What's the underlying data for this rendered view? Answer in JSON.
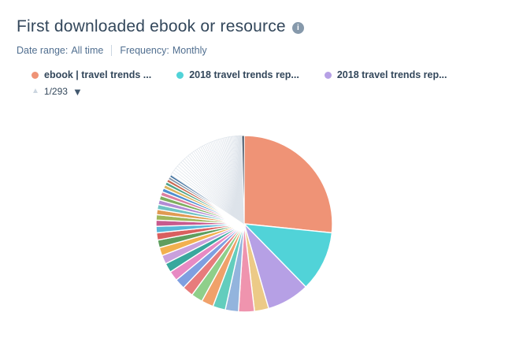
{
  "header": {
    "title": "First downloaded ebook or resource",
    "info_icon_glyph": "i"
  },
  "filters": {
    "date_range_label": "Date range:",
    "date_range_value": "All time",
    "frequency_label": "Frequency:",
    "frequency_value": "Monthly"
  },
  "legend": {
    "items": [
      {
        "label": "ebook | travel trends ...",
        "color": "#ef9376"
      },
      {
        "label": "2018 travel trends rep...",
        "color": "#51d3d8"
      },
      {
        "label": "2018 travel trends rep...",
        "color": "#b6a0e5"
      }
    ],
    "pagination": {
      "current_page": "1/293",
      "up_icon": "▲",
      "down_icon": "▼"
    }
  },
  "chart_data": {
    "type": "pie",
    "title": "First downloaded ebook or resource",
    "legend_position": "top",
    "units": "percent (estimated from slice angles)",
    "slices": [
      {
        "label": "ebook | travel trends ...",
        "value": 26.5,
        "color": "#ef9376"
      },
      {
        "label": "2018 travel trends rep...",
        "value": 11.0,
        "color": "#51d3d8"
      },
      {
        "label": "2018 travel trends rep...",
        "value": 7.8,
        "color": "#b6a0e5"
      },
      {
        "label": "",
        "value": 2.6,
        "color": "#ecca87"
      },
      {
        "label": "",
        "value": 2.9,
        "color": "#ef94ae"
      },
      {
        "label": "",
        "value": 2.4,
        "color": "#93b4dd"
      },
      {
        "label": "",
        "value": 2.3,
        "color": "#63cdbd"
      },
      {
        "label": "",
        "value": 2.2,
        "color": "#f0a16a"
      },
      {
        "label": "",
        "value": 2.1,
        "color": "#8fcf8a"
      },
      {
        "label": "",
        "value": 2.0,
        "color": "#e77c7c"
      },
      {
        "label": "",
        "value": 1.9,
        "color": "#7f9fe0"
      },
      {
        "label": "",
        "value": 1.8,
        "color": "#e78ac3"
      },
      {
        "label": "",
        "value": 1.7,
        "color": "#38a89d"
      },
      {
        "label": "",
        "value": 1.6,
        "color": "#c9a0dc"
      },
      {
        "label": "",
        "value": 1.5,
        "color": "#f2b04e"
      },
      {
        "label": "",
        "value": 1.4,
        "color": "#5e9e5e"
      },
      {
        "label": "",
        "value": 1.3,
        "color": "#d95f5f"
      },
      {
        "label": "",
        "value": 1.2,
        "color": "#58b6d8"
      },
      {
        "label": "",
        "value": 1.1,
        "color": "#c75a8e"
      },
      {
        "label": "",
        "value": 1.0,
        "color": "#9fb65a"
      },
      {
        "label": "",
        "value": 0.95,
        "color": "#e09a52"
      },
      {
        "label": "",
        "value": 0.9,
        "color": "#6fc3c3"
      },
      {
        "label": "",
        "value": 0.85,
        "color": "#b28bd4"
      },
      {
        "label": "",
        "value": 0.8,
        "color": "#7fae5f"
      },
      {
        "label": "",
        "value": 0.75,
        "color": "#dd7f9f"
      },
      {
        "label": "",
        "value": 0.7,
        "color": "#4f8fd0"
      },
      {
        "label": "",
        "value": 0.65,
        "color": "#d9b45e"
      },
      {
        "label": "",
        "value": 0.6,
        "color": "#4da28a"
      },
      {
        "label": "",
        "value": 0.55,
        "color": "#c96a52"
      },
      {
        "label": "",
        "value": 0.5,
        "color": "#8898aa"
      },
      {
        "label": "",
        "value": 0.45,
        "color": "#3e6f9e"
      }
    ],
    "tail": {
      "count": 55,
      "first_value": 0.5,
      "last_value": 0.05,
      "fill": "#ffffff",
      "stroke": "#dde3ea"
    },
    "end_slice": {
      "value": 0.4,
      "color": "#33475b"
    }
  }
}
